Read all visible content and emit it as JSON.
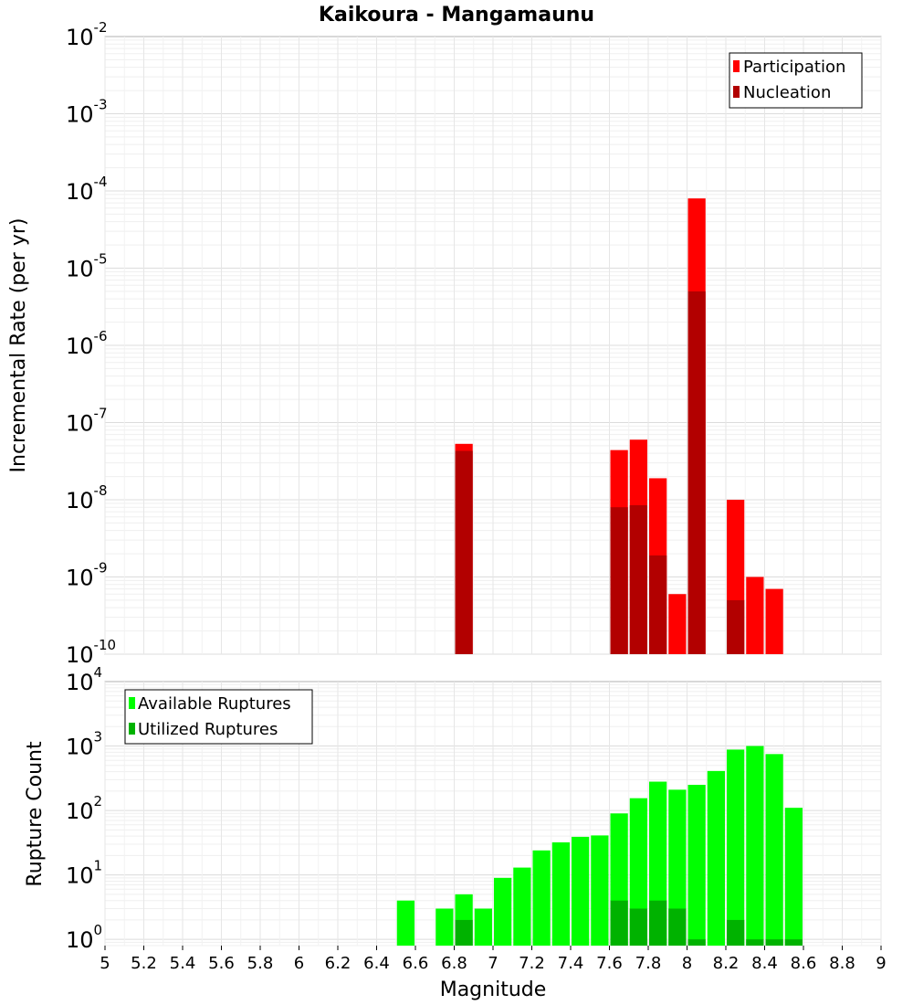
{
  "title": "Kaikoura - Mangamaunu",
  "xlabel": "Magnitude",
  "colors": {
    "participation": "#ff0000",
    "nucleation": "#b20000",
    "available": "#00ff00",
    "utilized": "#00b200"
  },
  "chart_data": [
    {
      "type": "bar",
      "ylabel": "Incremental Rate (per yr)",
      "yscale": "log",
      "ylim": [
        1e-10,
        0.01
      ],
      "xlim": [
        5,
        9
      ],
      "legend_position": "top-right",
      "series": [
        {
          "name": "Participation",
          "x": [
            6.85,
            7.65,
            7.75,
            7.85,
            7.95,
            8.05,
            8.25,
            8.35,
            8.45
          ],
          "values": [
            5.3e-08,
            4.4e-08,
            6e-08,
            1.9e-08,
            6e-10,
            8e-05,
            1e-08,
            1e-09,
            7e-10
          ]
        },
        {
          "name": "Nucleation",
          "x": [
            6.85,
            7.65,
            7.75,
            7.85,
            8.05,
            8.25
          ],
          "values": [
            4.3e-08,
            8e-09,
            8.5e-09,
            1.9e-09,
            5e-06,
            5e-10
          ]
        }
      ]
    },
    {
      "type": "bar",
      "ylabel": "Rupture Count",
      "yscale": "log",
      "ylim": [
        0.8,
        10000
      ],
      "xlim": [
        5,
        9
      ],
      "legend_position": "top-left",
      "series": [
        {
          "name": "Available Ruptures",
          "x": [
            6.55,
            6.75,
            6.85,
            6.95,
            7.05,
            7.15,
            7.25,
            7.35,
            7.45,
            7.55,
            7.65,
            7.75,
            7.85,
            7.95,
            8.05,
            8.15,
            8.25,
            8.35,
            8.45,
            8.55
          ],
          "values": [
            4,
            3,
            5,
            3,
            9,
            13,
            24,
            32,
            39,
            41,
            90,
            155,
            280,
            210,
            250,
            410,
            880,
            1000,
            750,
            110
          ]
        },
        {
          "name": "Utilized Ruptures",
          "x": [
            6.85,
            7.65,
            7.75,
            7.85,
            7.95,
            8.05,
            8.25,
            8.35,
            8.45,
            8.55
          ],
          "values": [
            2,
            4,
            3,
            4,
            3,
            1,
            2,
            1,
            1,
            1
          ]
        }
      ]
    }
  ],
  "x_ticks": [
    "5",
    "5.2",
    "5.4",
    "5.6",
    "5.8",
    "6",
    "6.2",
    "6.4",
    "6.6",
    "6.8",
    "7",
    "7.2",
    "7.4",
    "7.6",
    "7.8",
    "8",
    "8.2",
    "8.4",
    "8.6",
    "8.8",
    "9"
  ],
  "top_y_ticks": [
    {
      "base": "10",
      "exp": "-10"
    },
    {
      "base": "10",
      "exp": "-9"
    },
    {
      "base": "10",
      "exp": "-8"
    },
    {
      "base": "10",
      "exp": "-7"
    },
    {
      "base": "10",
      "exp": "-6"
    },
    {
      "base": "10",
      "exp": "-5"
    },
    {
      "base": "10",
      "exp": "-4"
    },
    {
      "base": "10",
      "exp": "-3"
    },
    {
      "base": "10",
      "exp": "-2"
    }
  ],
  "bottom_y_ticks": [
    {
      "base": "10",
      "exp": "0"
    },
    {
      "base": "10",
      "exp": "1"
    },
    {
      "base": "10",
      "exp": "2"
    },
    {
      "base": "10",
      "exp": "3"
    },
    {
      "base": "10",
      "exp": "4"
    }
  ]
}
